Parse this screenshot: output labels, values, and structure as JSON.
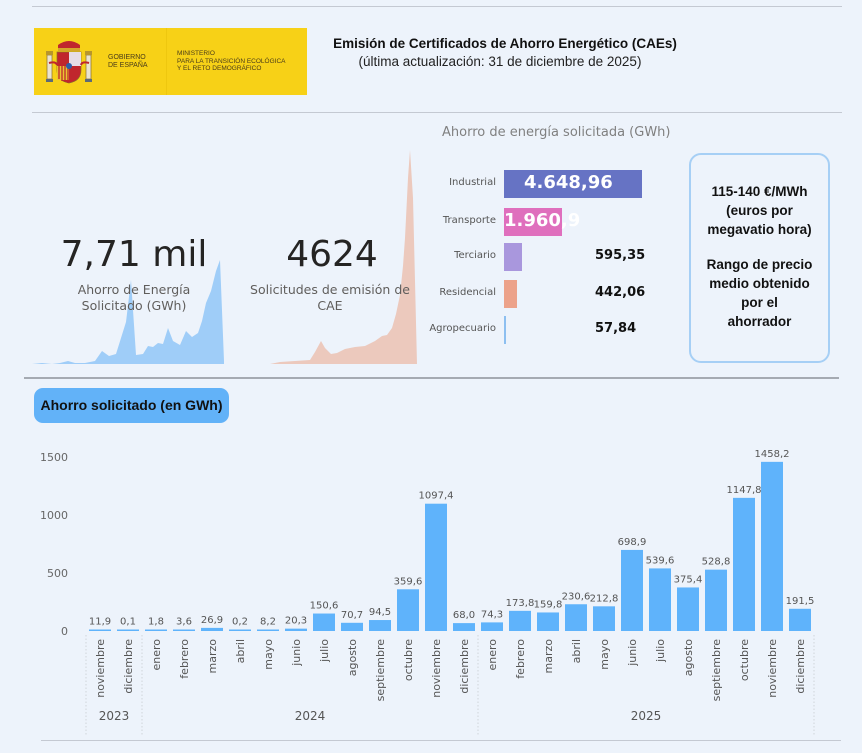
{
  "header": {
    "logo": {
      "government": [
        "GOBIERNO",
        "DE ESPAÑA"
      ],
      "ministry": [
        "MINISTERIO",
        "PARA LA TRANSICIÓN ECOLÓGICA",
        "Y EL RETO DEMOGRÁFICO"
      ]
    },
    "title": "Emisión de Certificados de Ahorro Energético (CAEs)",
    "subtitle": "(última actualización: 31 de diciembre de 2025)"
  },
  "kpis": [
    {
      "value": "7,71 mil",
      "label_lines": [
        "Ahorro de Energía",
        "Solicitado (GWh)"
      ],
      "color": "#9fcdf8"
    },
    {
      "value": "4624",
      "label_lines": [
        "Solicitudes de emisión de",
        "CAE"
      ],
      "color": "#ecc9bd"
    }
  ],
  "sectors": {
    "title": "Ahorro de energía solicitada (GWh)",
    "items": [
      {
        "label": "Industrial",
        "value": 4648.96,
        "display": "4.648,96",
        "color": "#6673c4"
      },
      {
        "label": "Transporte",
        "value": 1960.9,
        "display": "1.960,9",
        "color": "#df6fbd"
      },
      {
        "label": "Terciario",
        "value": 595.35,
        "display": "595,35",
        "color": "#a997dd"
      },
      {
        "label": "Residencial",
        "value": 442.06,
        "display": "442,06",
        "color": "#eca28a"
      },
      {
        "label": "Agropecuario",
        "value": 57.84,
        "display": "57,84",
        "color": "#8dbff0"
      }
    ]
  },
  "price_box": {
    "line1": "115-140 €/MWh",
    "line2": "(euros por",
    "line3": "megavatio hora)",
    "desc": [
      "Rango de precio",
      "medio obtenido",
      "por el",
      "ahorrador"
    ]
  },
  "section_title": "Ahorro solicitado (en GWh)",
  "chart_data": {
    "type": "bar",
    "title": "Ahorro solicitado (en GWh)",
    "xlabel": "",
    "ylabel": "",
    "ylim": [
      0,
      1500
    ],
    "yticks": [
      0,
      500,
      1000,
      1500
    ],
    "grid": false,
    "bar_color": "#5fb3fb",
    "categories": [
      {
        "year": "2023",
        "month": "noviembre"
      },
      {
        "year": "2023",
        "month": "diciembre"
      },
      {
        "year": "2024",
        "month": "enero"
      },
      {
        "year": "2024",
        "month": "febrero"
      },
      {
        "year": "2024",
        "month": "marzo"
      },
      {
        "year": "2024",
        "month": "abril"
      },
      {
        "year": "2024",
        "month": "mayo"
      },
      {
        "year": "2024",
        "month": "junio"
      },
      {
        "year": "2024",
        "month": "julio"
      },
      {
        "year": "2024",
        "month": "agosto"
      },
      {
        "year": "2024",
        "month": "septiembre"
      },
      {
        "year": "2024",
        "month": "octubre"
      },
      {
        "year": "2024",
        "month": "noviembre"
      },
      {
        "year": "2024",
        "month": "diciembre"
      },
      {
        "year": "2025",
        "month": "enero"
      },
      {
        "year": "2025",
        "month": "febrero"
      },
      {
        "year": "2025",
        "month": "marzo"
      },
      {
        "year": "2025",
        "month": "abril"
      },
      {
        "year": "2025",
        "month": "mayo"
      },
      {
        "year": "2025",
        "month": "junio"
      },
      {
        "year": "2025",
        "month": "julio"
      },
      {
        "year": "2025",
        "month": "agosto"
      },
      {
        "year": "2025",
        "month": "septiembre"
      },
      {
        "year": "2025",
        "month": "octubre"
      },
      {
        "year": "2025",
        "month": "noviembre"
      },
      {
        "year": "2025",
        "month": "diciembre"
      }
    ],
    "values": [
      11.9,
      0.1,
      1.8,
      3.6,
      26.9,
      0.2,
      8.2,
      20.3,
      150.6,
      70.7,
      94.5,
      359.6,
      1097.4,
      68.0,
      74.3,
      173.8,
      159.8,
      230.6,
      212.8,
      698.9,
      539.6,
      375.4,
      528.8,
      1147.8,
      1458.2,
      191.5
    ],
    "labels": [
      "11,9",
      "0,1",
      "1,8",
      "3,6",
      "26,9",
      "0,2",
      "8,2",
      "20,3",
      "150,6",
      "70,7",
      "94,5",
      "359,6",
      "1097,4",
      "68,0",
      "74,3",
      "173,8",
      "159,8",
      "230,6",
      "212,8",
      "698,9",
      "539,6",
      "375,4",
      "528,8",
      "1147,8",
      "1458,2",
      "191,5"
    ],
    "years": [
      "2023",
      "2024",
      "2025"
    ]
  }
}
